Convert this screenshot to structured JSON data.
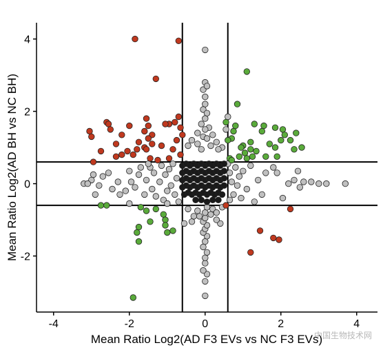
{
  "chart_data": {
    "type": "scatter",
    "title": "",
    "xlabel": "Mean Ratio Log2(AD F3 EVs vs NC F3 EVs)",
    "ylabel": "Mean Ratio Log2(AD BH vs NC BH)",
    "xlim": [
      -4.45,
      4.55
    ],
    "ylim": [
      -3.55,
      4.45
    ],
    "xticks": [
      -4,
      -2,
      0,
      2,
      4
    ],
    "yticks": [
      -2,
      0,
      2,
      4
    ],
    "grid": false,
    "reference_lines": {
      "vertical": [
        -0.6,
        0.6
      ],
      "horizontal": [
        0.6,
        -0.6
      ]
    },
    "colors": {
      "red": "#c0391f",
      "green": "#5aab3b",
      "gray": "#c0c0c0",
      "black": "#1a1a1a",
      "outline": "#222222",
      "lines": "#000000"
    },
    "series": [
      {
        "color_key": "red",
        "points": [
          [
            -1.85,
            4.0
          ],
          [
            -0.7,
            3.95
          ],
          [
            -1.3,
            2.9
          ],
          [
            -0.7,
            1.85
          ],
          [
            -0.8,
            1.7
          ],
          [
            -0.95,
            1.65
          ],
          [
            -2.6,
            1.7
          ],
          [
            -2.55,
            1.65
          ],
          [
            -1.55,
            1.8
          ],
          [
            -1.5,
            1.6
          ],
          [
            -1.05,
            1.65
          ],
          [
            -0.65,
            1.55
          ],
          [
            -3.05,
            1.45
          ],
          [
            -2.5,
            1.5
          ],
          [
            -2.0,
            1.6
          ],
          [
            -1.6,
            1.45
          ],
          [
            -3.0,
            1.3
          ],
          [
            -2.2,
            1.35
          ],
          [
            -1.4,
            1.35
          ],
          [
            -1.5,
            1.25
          ],
          [
            -0.6,
            1.35
          ],
          [
            -0.75,
            1.2
          ],
          [
            -2.35,
            1.1
          ],
          [
            -1.75,
            1.15
          ],
          [
            -1.4,
            1.1
          ],
          [
            -1.6,
            1.0
          ],
          [
            -1.15,
            1.05
          ],
          [
            -1.8,
            0.95
          ],
          [
            -1.55,
            0.95
          ],
          [
            -2.75,
            0.9
          ],
          [
            -2.05,
            0.9
          ],
          [
            -1.9,
            0.8
          ],
          [
            -0.85,
            0.95
          ],
          [
            -2.2,
            0.8
          ],
          [
            -2.35,
            0.75
          ],
          [
            -1.45,
            0.7
          ],
          [
            -1.25,
            0.65
          ],
          [
            -0.95,
            0.7
          ],
          [
            -0.65,
            0.8
          ],
          [
            -2.95,
            0.6
          ],
          [
            0.55,
            -0.6
          ],
          [
            2.25,
            -0.7
          ],
          [
            1.45,
            -1.3
          ],
          [
            1.8,
            -1.5
          ],
          [
            1.95,
            -1.55
          ],
          [
            1.2,
            -1.9
          ]
        ]
      },
      {
        "color_key": "green",
        "points": [
          [
            1.1,
            3.1
          ],
          [
            0.85,
            2.2
          ],
          [
            0.55,
            1.7
          ],
          [
            0.8,
            1.6
          ],
          [
            0.75,
            1.45
          ],
          [
            0.7,
            1.25
          ],
          [
            0.6,
            1.2
          ],
          [
            1.3,
            1.65
          ],
          [
            1.55,
            1.6
          ],
          [
            1.5,
            1.45
          ],
          [
            1.85,
            1.55
          ],
          [
            2.05,
            1.5
          ],
          [
            2.4,
            1.4
          ],
          [
            2.1,
            1.35
          ],
          [
            2.0,
            1.2
          ],
          [
            2.25,
            1.2
          ],
          [
            1.2,
            1.15
          ],
          [
            1.0,
            1.05
          ],
          [
            0.95,
            1.0
          ],
          [
            1.7,
            1.1
          ],
          [
            1.85,
            1.0
          ],
          [
            2.55,
            1.0
          ],
          [
            2.35,
            0.95
          ],
          [
            1.2,
            0.95
          ],
          [
            1.35,
            0.9
          ],
          [
            1.05,
            0.85
          ],
          [
            0.9,
            0.75
          ],
          [
            1.1,
            0.7
          ],
          [
            1.25,
            0.75
          ],
          [
            0.65,
            0.7
          ],
          [
            1.9,
            0.75
          ],
          [
            1.6,
            0.75
          ],
          [
            0.7,
            0.65
          ],
          [
            -2.75,
            -0.6
          ],
          [
            -2.6,
            -0.6
          ],
          [
            -1.7,
            -0.65
          ],
          [
            -1.55,
            -0.75
          ],
          [
            -1.3,
            -0.7
          ],
          [
            -1.1,
            -0.85
          ],
          [
            -1.05,
            -1.0
          ],
          [
            -1.45,
            -1.05
          ],
          [
            -1.05,
            -1.15
          ],
          [
            -1.75,
            -1.2
          ],
          [
            -1.8,
            -1.35
          ],
          [
            -1.0,
            -1.35
          ],
          [
            -0.85,
            -1.3
          ],
          [
            -1.75,
            -1.6
          ],
          [
            -1.9,
            -3.15
          ]
        ]
      },
      {
        "color_key": "gray",
        "points": [
          [
            -3.2,
            0.0
          ],
          [
            -3.0,
            0.1
          ],
          [
            -2.95,
            0.25
          ],
          [
            -2.8,
            -0.05
          ],
          [
            -2.7,
            0.2
          ],
          [
            -2.55,
            0.3
          ],
          [
            -2.45,
            -0.15
          ],
          [
            -2.3,
            0.05
          ],
          [
            -2.25,
            -0.3
          ],
          [
            -2.1,
            -0.2
          ],
          [
            -2.0,
            0.35
          ],
          [
            -1.95,
            0.05
          ],
          [
            -1.85,
            -0.1
          ],
          [
            -1.75,
            0.25
          ],
          [
            -1.7,
            0.45
          ],
          [
            -1.6,
            -0.3
          ],
          [
            -1.55,
            0.1
          ],
          [
            -1.45,
            0.45
          ],
          [
            -1.4,
            -0.15
          ],
          [
            -1.35,
            0.3
          ],
          [
            -1.3,
            -0.35
          ],
          [
            -1.2,
            0.05
          ],
          [
            -1.15,
            0.5
          ],
          [
            -1.1,
            -0.45
          ],
          [
            -1.05,
            0.25
          ],
          [
            -1.0,
            -0.2
          ],
          [
            -0.95,
            0.4
          ],
          [
            -0.9,
            -0.05
          ],
          [
            -0.85,
            0.55
          ],
          [
            -0.8,
            -0.3
          ],
          [
            -0.75,
            0.15
          ],
          [
            -0.7,
            -0.5
          ],
          [
            -3.1,
            0.0
          ],
          [
            -2.9,
            -0.3
          ],
          [
            -1.0,
            -0.55
          ],
          [
            -1.5,
            0.55
          ],
          [
            -2.0,
            -0.55
          ],
          [
            2.2,
            0.0
          ],
          [
            2.35,
            0.1
          ],
          [
            2.5,
            -0.1
          ],
          [
            2.6,
            0.05
          ],
          [
            3.0,
            0.0
          ],
          [
            3.2,
            0.0
          ],
          [
            3.7,
            0.0
          ],
          [
            2.45,
            0.35
          ],
          [
            1.8,
            0.45
          ],
          [
            1.6,
            0.3
          ],
          [
            1.5,
            -0.3
          ],
          [
            1.4,
            0.1
          ],
          [
            1.3,
            -0.5
          ],
          [
            1.2,
            0.5
          ],
          [
            1.1,
            -0.15
          ],
          [
            1.0,
            0.35
          ],
          [
            0.95,
            -0.4
          ],
          [
            0.9,
            0.2
          ],
          [
            0.85,
            -0.05
          ],
          [
            0.8,
            0.45
          ],
          [
            0.75,
            -0.3
          ],
          [
            0.7,
            0.05
          ],
          [
            0.65,
            0.3
          ],
          [
            0.65,
            -0.45
          ],
          [
            0.6,
            0.55
          ],
          [
            2.05,
            -0.4
          ],
          [
            1.9,
            0.3
          ],
          [
            2.8,
            0.05
          ],
          [
            0.0,
            3.7
          ],
          [
            0.0,
            2.8
          ],
          [
            -0.05,
            2.6
          ],
          [
            0.05,
            2.7
          ],
          [
            0.0,
            2.4
          ],
          [
            0.0,
            2.2
          ],
          [
            -0.05,
            2.05
          ],
          [
            0.05,
            1.95
          ],
          [
            0.0,
            1.8
          ],
          [
            -0.1,
            1.65
          ],
          [
            0.1,
            1.55
          ],
          [
            0.0,
            1.5
          ],
          [
            -0.2,
            1.4
          ],
          [
            0.2,
            1.35
          ],
          [
            -0.05,
            1.3
          ],
          [
            0.05,
            1.25
          ],
          [
            -0.35,
            1.2
          ],
          [
            0.3,
            1.15
          ],
          [
            0.6,
            1.85
          ],
          [
            0.55,
            1.5
          ],
          [
            -0.2,
            1.1
          ],
          [
            0.15,
            1.05
          ],
          [
            -0.45,
            1.05
          ],
          [
            0.45,
            1.0
          ],
          [
            -0.1,
            0.95
          ],
          [
            0.35,
            0.95
          ],
          [
            0.0,
            -3.1
          ],
          [
            0.0,
            -2.7
          ],
          [
            0.05,
            -2.5
          ],
          [
            -0.05,
            -2.4
          ],
          [
            0.0,
            -2.2
          ],
          [
            0.0,
            -2.05
          ],
          [
            0.05,
            -1.9
          ],
          [
            -0.05,
            -1.75
          ],
          [
            0.0,
            -1.6
          ],
          [
            0.05,
            -1.45
          ],
          [
            -0.05,
            -1.35
          ],
          [
            0.0,
            -1.25
          ],
          [
            0.05,
            -1.15
          ],
          [
            -0.05,
            -1.05
          ],
          [
            0.0,
            -0.95
          ],
          [
            -0.15,
            -0.9
          ],
          [
            0.15,
            -0.85
          ],
          [
            0.0,
            -0.8
          ],
          [
            -0.2,
            -0.75
          ],
          [
            0.2,
            -0.7
          ],
          [
            -0.55,
            -1.1
          ],
          [
            -0.35,
            -1.05
          ],
          [
            0.4,
            -1.1
          ],
          [
            0.3,
            -1.0
          ],
          [
            -0.3,
            -0.9
          ],
          [
            0.3,
            -0.8
          ],
          [
            -0.45,
            -0.7
          ],
          [
            0.45,
            -0.65
          ],
          [
            0.05,
            -0.65
          ]
        ]
      },
      {
        "color_key": "black",
        "points": [
          [
            -0.6,
            0.5
          ],
          [
            -0.5,
            0.55
          ],
          [
            -0.4,
            0.5
          ],
          [
            -0.3,
            0.55
          ],
          [
            -0.2,
            0.5
          ],
          [
            -0.1,
            0.55
          ],
          [
            0.0,
            0.5
          ],
          [
            0.1,
            0.55
          ],
          [
            0.2,
            0.5
          ],
          [
            0.3,
            0.55
          ],
          [
            0.4,
            0.5
          ],
          [
            0.5,
            0.55
          ],
          [
            -0.6,
            0.3
          ],
          [
            -0.5,
            0.35
          ],
          [
            -0.4,
            0.3
          ],
          [
            -0.3,
            0.35
          ],
          [
            -0.2,
            0.3
          ],
          [
            -0.1,
            0.35
          ],
          [
            0.0,
            0.3
          ],
          [
            0.1,
            0.35
          ],
          [
            0.2,
            0.3
          ],
          [
            0.3,
            0.35
          ],
          [
            0.4,
            0.3
          ],
          [
            0.5,
            0.35
          ],
          [
            -0.6,
            0.1
          ],
          [
            -0.5,
            0.15
          ],
          [
            -0.4,
            0.1
          ],
          [
            -0.3,
            0.15
          ],
          [
            -0.2,
            0.1
          ],
          [
            -0.1,
            0.15
          ],
          [
            0.0,
            0.1
          ],
          [
            0.1,
            0.15
          ],
          [
            0.2,
            0.1
          ],
          [
            0.3,
            0.15
          ],
          [
            0.4,
            0.1
          ],
          [
            0.5,
            0.15
          ],
          [
            -0.6,
            -0.1
          ],
          [
            -0.5,
            -0.05
          ],
          [
            -0.4,
            -0.1
          ],
          [
            -0.3,
            -0.05
          ],
          [
            -0.2,
            -0.1
          ],
          [
            -0.1,
            -0.05
          ],
          [
            0.0,
            -0.1
          ],
          [
            0.1,
            -0.05
          ],
          [
            0.2,
            -0.1
          ],
          [
            0.3,
            -0.05
          ],
          [
            0.4,
            -0.1
          ],
          [
            0.5,
            -0.05
          ],
          [
            -0.55,
            -0.3
          ],
          [
            -0.45,
            -0.25
          ],
          [
            -0.35,
            -0.3
          ],
          [
            -0.25,
            -0.25
          ],
          [
            -0.15,
            -0.3
          ],
          [
            -0.05,
            -0.25
          ],
          [
            0.05,
            -0.3
          ],
          [
            0.15,
            -0.25
          ],
          [
            0.25,
            -0.3
          ],
          [
            0.35,
            -0.25
          ],
          [
            0.45,
            -0.3
          ],
          [
            -0.25,
            -0.45
          ],
          [
            -0.1,
            -0.45
          ],
          [
            0.05,
            -0.5
          ],
          [
            0.2,
            -0.45
          ],
          [
            0.35,
            -0.45
          ]
        ]
      }
    ]
  },
  "watermark": "中国生物技术网"
}
